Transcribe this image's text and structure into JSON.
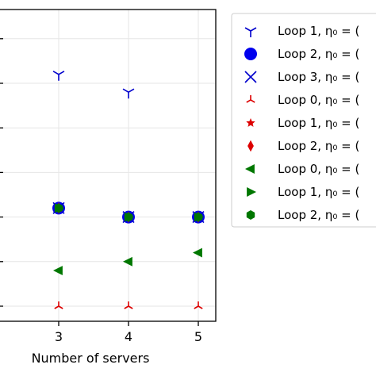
{
  "chart_data": {
    "type": "scatter",
    "xlabel": "Number of servers",
    "x_ticks": [
      3,
      4,
      5
    ],
    "grid": true,
    "legend_placement": "outside-right",
    "series": [
      {
        "name": "Loop 1, η₀ = (",
        "marker": "tri_down",
        "color": "#0000cc",
        "points": [
          [
            3,
            6.2
          ],
          [
            4,
            5.8
          ]
        ]
      },
      {
        "name": "Loop 2, η₀ = (",
        "marker": "circle",
        "color": "#0000ee",
        "points": [
          [
            3,
            3.2
          ],
          [
            4,
            3.0
          ],
          [
            5,
            3.0
          ]
        ]
      },
      {
        "name": "Loop 3, η₀ = (",
        "marker": "x",
        "color": "#0000cc",
        "points": [
          [
            3,
            3.2
          ],
          [
            4,
            3.0
          ],
          [
            5,
            3.0
          ]
        ]
      },
      {
        "name": "Loop 0, η₀ = (",
        "marker": "tri_up",
        "color": "#dd0000",
        "points": [
          [
            3,
            1.0
          ],
          [
            4,
            1.0
          ],
          [
            5,
            1.0
          ]
        ]
      },
      {
        "name": "Loop 1, η₀ = (",
        "marker": "star",
        "color": "#dd0000",
        "points": [
          [
            3,
            3.2
          ],
          [
            4,
            3.0
          ],
          [
            5,
            3.0
          ]
        ]
      },
      {
        "name": "Loop 2, η₀ = (",
        "marker": "diamond",
        "color": "#dd0000",
        "points": [
          [
            3,
            3.2
          ],
          [
            4,
            3.0
          ],
          [
            5,
            3.0
          ]
        ]
      },
      {
        "name": "Loop 0, η₀ = (",
        "marker": "triangle_left",
        "color": "#007700",
        "points": [
          [
            3,
            1.8
          ],
          [
            4,
            2.0
          ],
          [
            5,
            2.2
          ]
        ]
      },
      {
        "name": "Loop 1, η₀ = (",
        "marker": "triangle_right",
        "color": "#007700",
        "points": [
          [
            3,
            3.2
          ],
          [
            4,
            3.0
          ],
          [
            5,
            3.0
          ]
        ]
      },
      {
        "name": "Loop 2, η₀ = (",
        "marker": "hexagon",
        "color": "#007700",
        "points": [
          [
            3,
            3.2
          ],
          [
            4,
            3.0
          ],
          [
            5,
            3.0
          ]
        ]
      }
    ]
  }
}
